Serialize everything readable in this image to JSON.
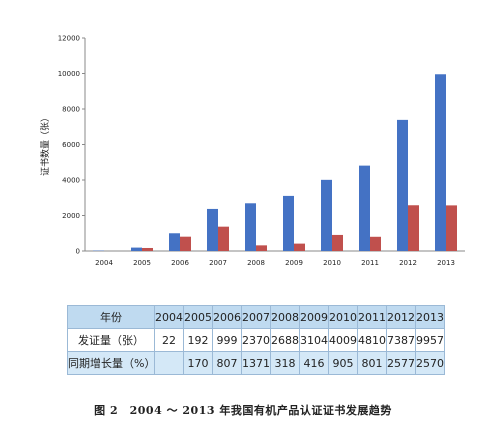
{
  "chart_data": {
    "type": "bar",
    "categories": [
      "2004",
      "2005",
      "2006",
      "2007",
      "2008",
      "2009",
      "2010",
      "2011",
      "2012",
      "2013"
    ],
    "series": [
      {
        "values": [
          22,
          192,
          999,
          2370,
          2688,
          3104,
          4009,
          4810,
          7387,
          9957
        ],
        "color": "#4472c4"
      },
      {
        "values": [
          0,
          170,
          807,
          1371,
          318,
          416,
          905,
          801,
          2577,
          2570
        ],
        "color": "#c0504d"
      }
    ],
    "ylabel": "证书数量（张）",
    "ylim": [
      0,
      12000
    ],
    "yticks": [
      "0",
      "2000",
      "4000",
      "6000",
      "8000",
      "10000",
      "12000"
    ],
    "grid": false,
    "legend": "none"
  },
  "table": {
    "header_label": "年份",
    "years": [
      "2004",
      "2005",
      "2006",
      "2007",
      "2008",
      "2009",
      "2010",
      "2011",
      "2012",
      "2013"
    ],
    "rows": [
      {
        "label": "发证量（张）",
        "values": [
          "22",
          "192",
          "999",
          "2370",
          "2688",
          "3104",
          "4009",
          "4810",
          "7387",
          "9957"
        ]
      },
      {
        "label": "同期增长量（%）",
        "values": [
          "",
          "170",
          "807",
          "1371",
          "318",
          "416",
          "905",
          "801",
          "2577",
          "2570"
        ]
      }
    ]
  },
  "caption": "图 2　2004 ～ 2013 年我国有机产品认证证书发展趋势"
}
